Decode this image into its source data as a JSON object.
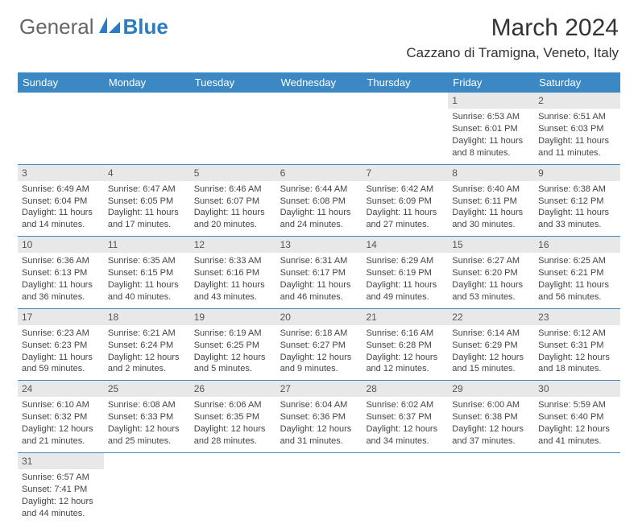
{
  "logo": {
    "general": "General",
    "blue": "Blue"
  },
  "header": {
    "month_year": "March 2024",
    "location": "Cazzano di Tramigna, Veneto, Italy"
  },
  "colors": {
    "brand_blue": "#3b88c4",
    "logo_blue": "#2b7cc0",
    "day_strip": "#e8e8e8",
    "text": "#444444"
  },
  "weekdays": [
    "Sunday",
    "Monday",
    "Tuesday",
    "Wednesday",
    "Thursday",
    "Friday",
    "Saturday"
  ],
  "weeks": [
    [
      null,
      null,
      null,
      null,
      null,
      {
        "n": "1",
        "sunrise": "Sunrise: 6:53 AM",
        "sunset": "Sunset: 6:01 PM",
        "day1": "Daylight: 11 hours",
        "day2": "and 8 minutes."
      },
      {
        "n": "2",
        "sunrise": "Sunrise: 6:51 AM",
        "sunset": "Sunset: 6:03 PM",
        "day1": "Daylight: 11 hours",
        "day2": "and 11 minutes."
      }
    ],
    [
      {
        "n": "3",
        "sunrise": "Sunrise: 6:49 AM",
        "sunset": "Sunset: 6:04 PM",
        "day1": "Daylight: 11 hours",
        "day2": "and 14 minutes."
      },
      {
        "n": "4",
        "sunrise": "Sunrise: 6:47 AM",
        "sunset": "Sunset: 6:05 PM",
        "day1": "Daylight: 11 hours",
        "day2": "and 17 minutes."
      },
      {
        "n": "5",
        "sunrise": "Sunrise: 6:46 AM",
        "sunset": "Sunset: 6:07 PM",
        "day1": "Daylight: 11 hours",
        "day2": "and 20 minutes."
      },
      {
        "n": "6",
        "sunrise": "Sunrise: 6:44 AM",
        "sunset": "Sunset: 6:08 PM",
        "day1": "Daylight: 11 hours",
        "day2": "and 24 minutes."
      },
      {
        "n": "7",
        "sunrise": "Sunrise: 6:42 AM",
        "sunset": "Sunset: 6:09 PM",
        "day1": "Daylight: 11 hours",
        "day2": "and 27 minutes."
      },
      {
        "n": "8",
        "sunrise": "Sunrise: 6:40 AM",
        "sunset": "Sunset: 6:11 PM",
        "day1": "Daylight: 11 hours",
        "day2": "and 30 minutes."
      },
      {
        "n": "9",
        "sunrise": "Sunrise: 6:38 AM",
        "sunset": "Sunset: 6:12 PM",
        "day1": "Daylight: 11 hours",
        "day2": "and 33 minutes."
      }
    ],
    [
      {
        "n": "10",
        "sunrise": "Sunrise: 6:36 AM",
        "sunset": "Sunset: 6:13 PM",
        "day1": "Daylight: 11 hours",
        "day2": "and 36 minutes."
      },
      {
        "n": "11",
        "sunrise": "Sunrise: 6:35 AM",
        "sunset": "Sunset: 6:15 PM",
        "day1": "Daylight: 11 hours",
        "day2": "and 40 minutes."
      },
      {
        "n": "12",
        "sunrise": "Sunrise: 6:33 AM",
        "sunset": "Sunset: 6:16 PM",
        "day1": "Daylight: 11 hours",
        "day2": "and 43 minutes."
      },
      {
        "n": "13",
        "sunrise": "Sunrise: 6:31 AM",
        "sunset": "Sunset: 6:17 PM",
        "day1": "Daylight: 11 hours",
        "day2": "and 46 minutes."
      },
      {
        "n": "14",
        "sunrise": "Sunrise: 6:29 AM",
        "sunset": "Sunset: 6:19 PM",
        "day1": "Daylight: 11 hours",
        "day2": "and 49 minutes."
      },
      {
        "n": "15",
        "sunrise": "Sunrise: 6:27 AM",
        "sunset": "Sunset: 6:20 PM",
        "day1": "Daylight: 11 hours",
        "day2": "and 53 minutes."
      },
      {
        "n": "16",
        "sunrise": "Sunrise: 6:25 AM",
        "sunset": "Sunset: 6:21 PM",
        "day1": "Daylight: 11 hours",
        "day2": "and 56 minutes."
      }
    ],
    [
      {
        "n": "17",
        "sunrise": "Sunrise: 6:23 AM",
        "sunset": "Sunset: 6:23 PM",
        "day1": "Daylight: 11 hours",
        "day2": "and 59 minutes."
      },
      {
        "n": "18",
        "sunrise": "Sunrise: 6:21 AM",
        "sunset": "Sunset: 6:24 PM",
        "day1": "Daylight: 12 hours",
        "day2": "and 2 minutes."
      },
      {
        "n": "19",
        "sunrise": "Sunrise: 6:19 AM",
        "sunset": "Sunset: 6:25 PM",
        "day1": "Daylight: 12 hours",
        "day2": "and 5 minutes."
      },
      {
        "n": "20",
        "sunrise": "Sunrise: 6:18 AM",
        "sunset": "Sunset: 6:27 PM",
        "day1": "Daylight: 12 hours",
        "day2": "and 9 minutes."
      },
      {
        "n": "21",
        "sunrise": "Sunrise: 6:16 AM",
        "sunset": "Sunset: 6:28 PM",
        "day1": "Daylight: 12 hours",
        "day2": "and 12 minutes."
      },
      {
        "n": "22",
        "sunrise": "Sunrise: 6:14 AM",
        "sunset": "Sunset: 6:29 PM",
        "day1": "Daylight: 12 hours",
        "day2": "and 15 minutes."
      },
      {
        "n": "23",
        "sunrise": "Sunrise: 6:12 AM",
        "sunset": "Sunset: 6:31 PM",
        "day1": "Daylight: 12 hours",
        "day2": "and 18 minutes."
      }
    ],
    [
      {
        "n": "24",
        "sunrise": "Sunrise: 6:10 AM",
        "sunset": "Sunset: 6:32 PM",
        "day1": "Daylight: 12 hours",
        "day2": "and 21 minutes."
      },
      {
        "n": "25",
        "sunrise": "Sunrise: 6:08 AM",
        "sunset": "Sunset: 6:33 PM",
        "day1": "Daylight: 12 hours",
        "day2": "and 25 minutes."
      },
      {
        "n": "26",
        "sunrise": "Sunrise: 6:06 AM",
        "sunset": "Sunset: 6:35 PM",
        "day1": "Daylight: 12 hours",
        "day2": "and 28 minutes."
      },
      {
        "n": "27",
        "sunrise": "Sunrise: 6:04 AM",
        "sunset": "Sunset: 6:36 PM",
        "day1": "Daylight: 12 hours",
        "day2": "and 31 minutes."
      },
      {
        "n": "28",
        "sunrise": "Sunrise: 6:02 AM",
        "sunset": "Sunset: 6:37 PM",
        "day1": "Daylight: 12 hours",
        "day2": "and 34 minutes."
      },
      {
        "n": "29",
        "sunrise": "Sunrise: 6:00 AM",
        "sunset": "Sunset: 6:38 PM",
        "day1": "Daylight: 12 hours",
        "day2": "and 37 minutes."
      },
      {
        "n": "30",
        "sunrise": "Sunrise: 5:59 AM",
        "sunset": "Sunset: 6:40 PM",
        "day1": "Daylight: 12 hours",
        "day2": "and 41 minutes."
      }
    ],
    [
      {
        "n": "31",
        "sunrise": "Sunrise: 6:57 AM",
        "sunset": "Sunset: 7:41 PM",
        "day1": "Daylight: 12 hours",
        "day2": "and 44 minutes."
      },
      null,
      null,
      null,
      null,
      null,
      null
    ]
  ]
}
